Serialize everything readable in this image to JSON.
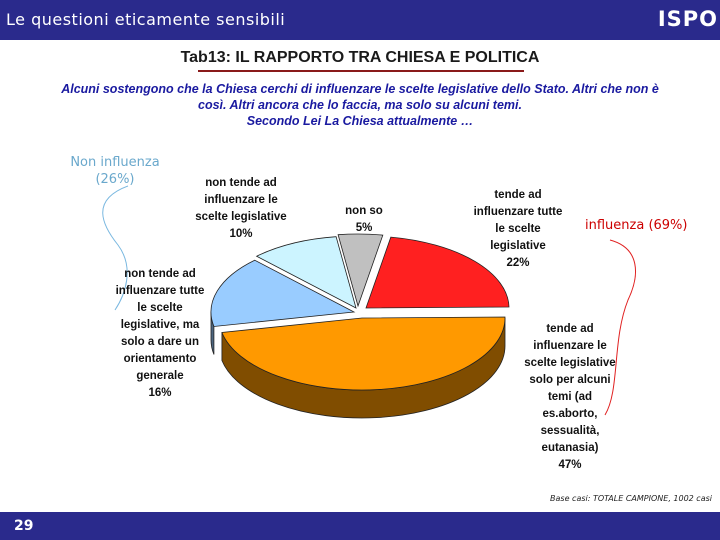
{
  "header": {
    "title": "Le questioni eticamente sensibili",
    "logo": "ISPO"
  },
  "table_title": "Tab13: IL RAPPORTO TRA CHIESA E POLITICA",
  "question": {
    "line1": "Alcuni sostengono che la Chiesa cerchi di influenzare le scelte legislative dello Stato. Altri che non è",
    "line2": "così. Altri ancora che lo faccia, ma solo su alcuni temi.",
    "line3": "Secondo Lei La Chiesa attualmente …"
  },
  "chart_data": {
    "type": "pie",
    "slices": [
      {
        "label": "tende ad influenzare tutte le scelte legislative",
        "value": 22,
        "color": "#ff2020"
      },
      {
        "label": "tende ad influenzare le scelte legislative solo per alcuni temi (ad es.aborto, sessualità, eutanasia)",
        "value": 47,
        "color": "#ff9900"
      },
      {
        "label": "non tende ad influenzare tutte le scelte legislative, ma solo a dare un orientamento generale",
        "value": 16,
        "color": "#99ccff"
      },
      {
        "label": "non tende ad influenzare le scelte legislative",
        "value": 10,
        "color": "#ccf4ff"
      },
      {
        "label": "non so",
        "value": 5,
        "color": "#c0c0c0"
      }
    ],
    "groups": [
      {
        "label": "influenza (69%)",
        "color": "#cc0000"
      },
      {
        "label": "Non influenza (26%)",
        "color": "#6aa8cc"
      }
    ],
    "labels": {
      "s1": [
        "tende ad",
        "influenzare tutte",
        "le scelte",
        "legislative",
        "22%"
      ],
      "s2": [
        "tende ad",
        "influenzare le",
        "scelte legislative",
        "solo per alcuni",
        "temi (ad",
        "es.aborto,",
        "sessualità,",
        "eutanasia)",
        "47%"
      ],
      "s3": [
        "non tende ad",
        "influenzare tutte",
        "le scelte",
        "legislative, ma",
        "solo a dare un",
        "orientamento",
        "generale",
        "16%"
      ],
      "s4": [
        "non tende ad",
        "influenzare le",
        "scelte legislative",
        "10%"
      ],
      "s5": [
        "non so",
        "5%"
      ]
    },
    "group_labels": {
      "g1": [
        "influenza (69%)"
      ],
      "g2": [
        "Non influenza",
        "(26%)"
      ]
    },
    "base_note": "Base casi: TOTALE CAMPIONE, 1002 casi"
  },
  "footer": {
    "page_number": "29"
  }
}
